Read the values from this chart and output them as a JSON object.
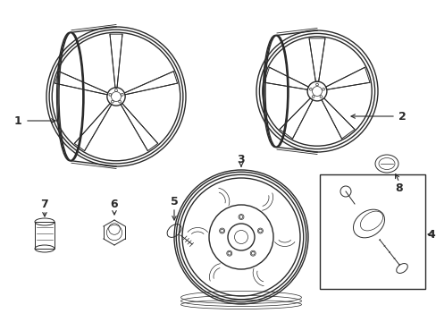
{
  "bg_color": "#ffffff",
  "line_color": "#2a2a2a",
  "figsize": [
    4.89,
    3.6
  ],
  "dpi": 100,
  "label_fs": 9,
  "lw_outer": 1.0,
  "lw_spoke": 0.7,
  "lw_thin": 0.5
}
